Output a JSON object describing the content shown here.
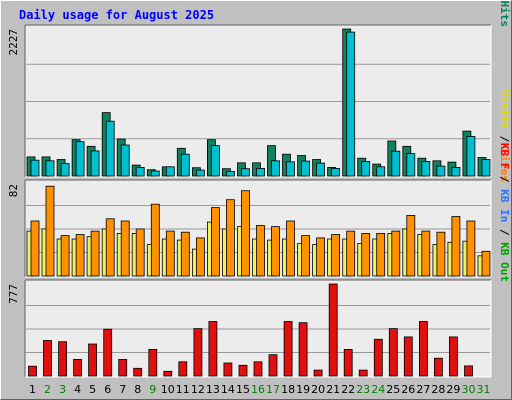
{
  "colors": {
    "background": "#c0c0c0",
    "panel": "#ececec",
    "title": "#0000ff",
    "grid": "#999999",
    "weekday": "#000000",
    "weekend": "#008000",
    "pages": "#00c0d0",
    "hits": "#108060",
    "visits": "#f0f060",
    "sites": "#ff9000",
    "kb": "#e01010",
    "legend_pages": "#00d0d0",
    "legend_files": "#0040ff",
    "legend_hits": "#008060",
    "legend_visits": "#e0e000",
    "legend_sites": "#ff8000",
    "legend_kb_in": "#3070ff",
    "legend_kb_out": "#00a000",
    "legend_kb_f": "#ff0000",
    "legend_sep": "#000000"
  },
  "chart_data": {
    "type": "bar",
    "title": "Daily usage for August 2025",
    "categories": [
      "1",
      "2",
      "3",
      "4",
      "5",
      "6",
      "7",
      "8",
      "9",
      "10",
      "11",
      "12",
      "13",
      "14",
      "15",
      "16",
      "17",
      "18",
      "19",
      "20",
      "21",
      "22",
      "23",
      "24",
      "25",
      "26",
      "27",
      "28",
      "29",
      "30",
      "31"
    ],
    "weekend_days": [
      "2",
      "3",
      "9",
      "16",
      "17",
      "23",
      "24",
      "30",
      "31"
    ],
    "panels": [
      {
        "name": "hits-pages",
        "ymax_label": "2227",
        "ylim": [
          0,
          2227
        ],
        "legend": [
          {
            "text": "Pages",
            "color_key": "legend_pages"
          },
          {
            "text": " / ",
            "color_key": "legend_sep"
          },
          {
            "text": "Files",
            "color_key": "legend_files"
          },
          {
            "text": " / ",
            "color_key": "legend_sep"
          },
          {
            "text": "Hits",
            "color_key": "legend_hits"
          }
        ],
        "series": [
          {
            "name": "Hits",
            "color_key": "hits",
            "values": [
              290,
              290,
              250,
              550,
              450,
              960,
              560,
              165,
              95,
              140,
              420,
              125,
              550,
              110,
              200,
              200,
              460,
              330,
              310,
              250,
              130,
              2227,
              270,
              180,
              530,
              450,
              270,
              230,
              210,
              680,
              280
            ]
          },
          {
            "name": "Pages",
            "color_key": "pages",
            "values": [
              240,
              230,
              190,
              520,
              380,
              830,
              470,
              130,
              75,
              140,
              330,
              90,
              460,
              70,
              110,
              115,
              230,
              215,
              225,
              195,
              115,
              2180,
              220,
              140,
              375,
              340,
              220,
              150,
              130,
              600,
              250
            ]
          }
        ]
      },
      {
        "name": "visits-sites",
        "ymax_label": "82",
        "ylim": [
          0,
          82
        ],
        "legend": [
          {
            "text": "Visits",
            "color_key": "legend_visits"
          },
          {
            "text": " / ",
            "color_key": "legend_sep"
          },
          {
            "text": "Sites",
            "color_key": "legend_sites"
          }
        ],
        "series": [
          {
            "name": "Visits",
            "color_key": "visits",
            "values": [
              40,
              42,
              33,
              33,
              35,
              42,
              38,
              38,
              28,
              33,
              32,
              24,
              48,
              42,
              44,
              33,
              32,
              33,
              29,
              28,
              33,
              33,
              29,
              33,
              38,
              42,
              37,
              28,
              30,
              31,
              18
            ]
          },
          {
            "name": "Sites",
            "color_key": "sites",
            "values": [
              49,
              80,
              36,
              37,
              40,
              51,
              49,
              42,
              64,
              40,
              39,
              34,
              61,
              68,
              76,
              45,
              44,
              49,
              36,
              34,
              37,
              40,
              38,
              38,
              40,
              54,
              40,
              39,
              53,
              49,
              22
            ]
          }
        ]
      },
      {
        "name": "kbytes",
        "ymax_label": "777",
        "ylim": [
          0,
          777
        ],
        "legend": [
          {
            "text": "KB F",
            "color_key": "legend_kb_f"
          },
          {
            "text": " / ",
            "color_key": "legend_sep"
          },
          {
            "text": "KB In",
            "color_key": "legend_kb_in"
          },
          {
            "text": " / ",
            "color_key": "legend_sep"
          },
          {
            "text": "KB Out",
            "color_key": "legend_kb_out"
          }
        ],
        "series": [
          {
            "name": "KB F",
            "color_key": "kb",
            "values": [
              83,
              300,
              290,
              140,
              270,
              395,
              140,
              65,
              225,
              40,
              120,
              400,
              460,
              110,
              90,
              120,
              180,
              460,
              450,
              50,
              777,
              225,
              50,
              310,
              400,
              330,
              460,
              150,
              330,
              85,
              0
            ]
          }
        ]
      }
    ]
  }
}
